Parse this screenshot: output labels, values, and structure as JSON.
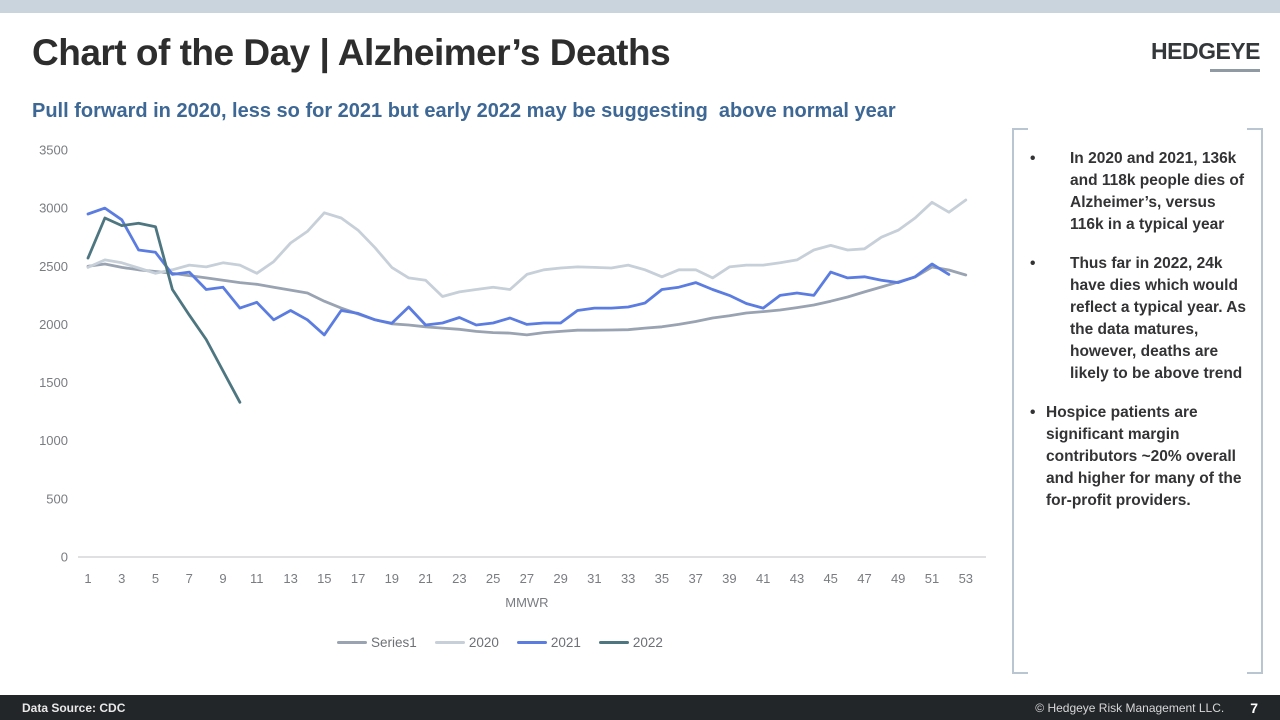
{
  "slide": {
    "title": "Chart of the Day | Alzheimer’s Deaths",
    "logo": "HEDGEYE",
    "subtitle": "Pull forward in 2020, less so for 2021 but early 2022 may be suggesting  above normal year",
    "footer": {
      "left": "Data Source: CDC",
      "right": "© Hedgeye Risk Management LLC.",
      "page": "7"
    }
  },
  "chart_data": {
    "type": "line",
    "title": "",
    "xlabel": "MMWR",
    "ylabel": "",
    "ylim": [
      0,
      3500
    ],
    "y_ticks": [
      0,
      500,
      1000,
      1500,
      2000,
      2500,
      3000,
      3500
    ],
    "x_ticks": [
      1,
      3,
      5,
      7,
      9,
      11,
      13,
      15,
      17,
      19,
      21,
      23,
      25,
      27,
      29,
      31,
      33,
      35,
      37,
      39,
      41,
      43,
      45,
      47,
      49,
      51,
      53
    ],
    "x_range": [
      1,
      53
    ],
    "grid": false,
    "legend_position": "bottom",
    "axis_color": "#d5d6d8",
    "tick_color": "#797c80",
    "series": [
      {
        "name": "Series1",
        "color": "#9aa3b2",
        "start_week": 1,
        "values": [
          2500,
          2520,
          2490,
          2470,
          2455,
          2440,
          2420,
          2400,
          2380,
          2360,
          2345,
          2320,
          2295,
          2270,
          2200,
          2140,
          2090,
          2040,
          2005,
          1995,
          1980,
          1968,
          1958,
          1940,
          1930,
          1925,
          1910,
          1930,
          1940,
          1950,
          1950,
          1952,
          1955,
          1968,
          1980,
          2000,
          2025,
          2055,
          2075,
          2098,
          2110,
          2124,
          2145,
          2167,
          2200,
          2236,
          2280,
          2322,
          2365,
          2408,
          2494,
          2468,
          2425
        ]
      },
      {
        "name": "2020",
        "color": "#c7cfd8",
        "start_week": 1,
        "values": [
          2490,
          2555,
          2530,
          2485,
          2440,
          2470,
          2510,
          2495,
          2530,
          2510,
          2440,
          2540,
          2700,
          2800,
          2960,
          2915,
          2810,
          2660,
          2490,
          2400,
          2380,
          2240,
          2280,
          2300,
          2320,
          2300,
          2430,
          2470,
          2485,
          2495,
          2490,
          2485,
          2510,
          2470,
          2410,
          2470,
          2470,
          2400,
          2495,
          2510,
          2510,
          2530,
          2555,
          2640,
          2680,
          2640,
          2650,
          2750,
          2810,
          2915,
          3050,
          2965,
          3070
        ]
      },
      {
        "name": "2021",
        "color": "#5b7ce0",
        "start_week": 1,
        "values": [
          2950,
          3000,
          2900,
          2640,
          2620,
          2430,
          2450,
          2300,
          2320,
          2140,
          2190,
          2040,
          2120,
          2040,
          1910,
          2120,
          2095,
          2040,
          2010,
          2150,
          1995,
          2012,
          2060,
          1995,
          2012,
          2055,
          2000,
          2012,
          2012,
          2120,
          2140,
          2140,
          2150,
          2184,
          2300,
          2320,
          2360,
          2300,
          2250,
          2180,
          2140,
          2250,
          2270,
          2250,
          2450,
          2400,
          2410,
          2380,
          2360,
          2410,
          2520,
          2430
        ]
      },
      {
        "name": "2022",
        "color": "#4d7680",
        "start_week": 1,
        "values": [
          2570,
          2915,
          2850,
          2870,
          2840,
          2300,
          2080,
          1870,
          1600,
          1330
        ]
      }
    ]
  },
  "sidebar": {
    "bullets": [
      "In 2020 and 2021, 136k and 118k people dies of Alzheimer’s, versus 116k in a typical year",
      "Thus far in 2022, 24k have dies which would reflect a typical year. As the data matures, however, deaths are likely to be above trend",
      "Hospice patients are significant margin contributors ~20% overall and higher for many of the for-profit providers."
    ]
  }
}
